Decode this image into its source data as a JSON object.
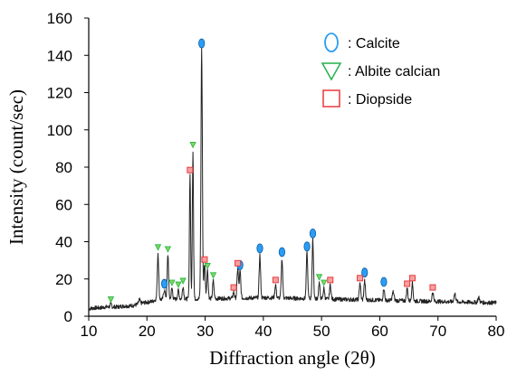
{
  "chart_data": {
    "type": "line",
    "xlabel": "Diffraction angle (2θ)",
    "ylabel": "Intensity (count/sec)",
    "xlim": [
      10,
      80
    ],
    "ylim": [
      0,
      160
    ],
    "x_ticks": [
      "10",
      "20",
      "30",
      "40",
      "50",
      "60",
      "70",
      "80"
    ],
    "y_ticks": [
      "0",
      "20",
      "40",
      "60",
      "80",
      "100",
      "120",
      "140",
      "160"
    ],
    "grid": false,
    "legend_position": "top-right",
    "legend": [
      {
        "name": ": Calcite",
        "marker": "ellipse",
        "color": "#2a9df4"
      },
      {
        "name": ": Albite calcian",
        "marker": "triangle-down",
        "color": "#22b14c"
      },
      {
        "name": ": Diopside",
        "marker": "square",
        "color": "#e8393c"
      }
    ],
    "background_points": [
      [
        10,
        4
      ],
      [
        11,
        4.5
      ],
      [
        12,
        4.5
      ],
      [
        13,
        5
      ],
      [
        14,
        5
      ],
      [
        15,
        5
      ],
      [
        16,
        5.5
      ],
      [
        17,
        5.5
      ],
      [
        18,
        6
      ],
      [
        19,
        7
      ],
      [
        20,
        7.5
      ],
      [
        21,
        8
      ],
      [
        21.5,
        9
      ]
    ],
    "peaks": [
      {
        "x": 13.8,
        "y": 6.5,
        "w": 0.12
      },
      {
        "x": 18.7,
        "y": 9,
        "w": 0.12
      },
      {
        "x": 21.9,
        "y": 34,
        "w": 0.12
      },
      {
        "x": 23.0,
        "y": 14,
        "w": 0.15
      },
      {
        "x": 23.6,
        "y": 33,
        "w": 0.12
      },
      {
        "x": 24.3,
        "y": 15,
        "w": 0.12
      },
      {
        "x": 25.4,
        "y": 14,
        "w": 0.12
      },
      {
        "x": 26.2,
        "y": 16,
        "w": 0.12
      },
      {
        "x": 27.4,
        "y": 76,
        "w": 0.1
      },
      {
        "x": 27.9,
        "y": 89,
        "w": 0.1
      },
      {
        "x": 29.4,
        "y": 144,
        "w": 0.12
      },
      {
        "x": 29.9,
        "y": 28,
        "w": 0.12
      },
      {
        "x": 30.4,
        "y": 25,
        "w": 0.12
      },
      {
        "x": 31.4,
        "y": 19,
        "w": 0.12
      },
      {
        "x": 34.9,
        "y": 13,
        "w": 0.12
      },
      {
        "x": 35.6,
        "y": 26,
        "w": 0.12
      },
      {
        "x": 36.0,
        "y": 24,
        "w": 0.12
      },
      {
        "x": 39.4,
        "y": 33,
        "w": 0.12
      },
      {
        "x": 42.1,
        "y": 17,
        "w": 0.12
      },
      {
        "x": 43.2,
        "y": 31,
        "w": 0.12
      },
      {
        "x": 47.5,
        "y": 34,
        "w": 0.12
      },
      {
        "x": 48.5,
        "y": 41,
        "w": 0.12
      },
      {
        "x": 49.6,
        "y": 18,
        "w": 0.12
      },
      {
        "x": 50.4,
        "y": 15,
        "w": 0.12
      },
      {
        "x": 51.5,
        "y": 17,
        "w": 0.12
      },
      {
        "x": 56.6,
        "y": 18,
        "w": 0.12
      },
      {
        "x": 57.4,
        "y": 19,
        "w": 0.12
      },
      {
        "x": 60.7,
        "y": 15,
        "w": 0.12
      },
      {
        "x": 62.3,
        "y": 13,
        "w": 0.15
      },
      {
        "x": 64.7,
        "y": 15,
        "w": 0.12
      },
      {
        "x": 65.6,
        "y": 18,
        "w": 0.12
      },
      {
        "x": 69.1,
        "y": 13,
        "w": 0.12
      },
      {
        "x": 72.9,
        "y": 12,
        "w": 0.15
      },
      {
        "x": 77.0,
        "y": 10,
        "w": 0.15
      }
    ],
    "markers": {
      "calcite": [
        [
          23.0,
          15
        ],
        [
          29.4,
          144
        ],
        [
          36.0,
          25
        ],
        [
          39.4,
          34
        ],
        [
          43.2,
          32
        ],
        [
          47.5,
          35
        ],
        [
          48.5,
          42
        ],
        [
          57.4,
          21
        ],
        [
          60.7,
          16
        ]
      ],
      "albite_calcian": [
        [
          13.8,
          7
        ],
        [
          21.9,
          35
        ],
        [
          23.6,
          34
        ],
        [
          24.3,
          16
        ],
        [
          25.4,
          15
        ],
        [
          26.2,
          17
        ],
        [
          27.9,
          90
        ],
        [
          30.4,
          25
        ],
        [
          31.4,
          20
        ],
        [
          49.6,
          19
        ],
        [
          50.4,
          16
        ]
      ],
      "diopside": [
        [
          27.4,
          77
        ],
        [
          29.9,
          29
        ],
        [
          34.9,
          14
        ],
        [
          35.6,
          27
        ],
        [
          42.1,
          18
        ],
        [
          51.5,
          18
        ],
        [
          56.6,
          19
        ],
        [
          64.7,
          16
        ],
        [
          65.6,
          19
        ],
        [
          69.1,
          14
        ]
      ]
    }
  }
}
